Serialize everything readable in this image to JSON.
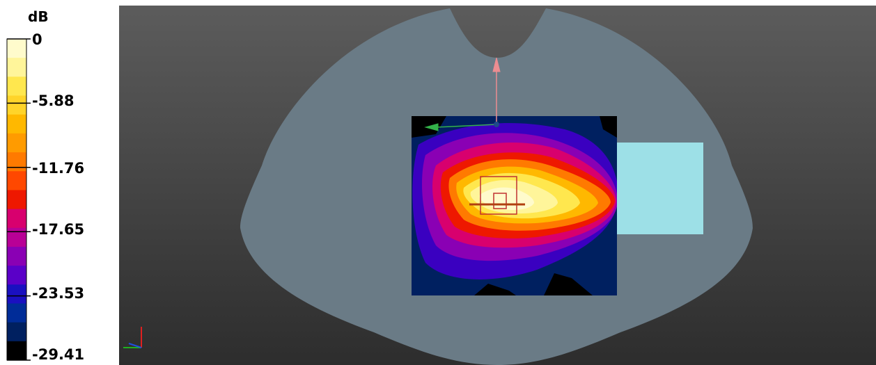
{
  "colorbar": {
    "unit": "dB",
    "ticks": [
      "0",
      "-5.88",
      "-11.76",
      "-17.65",
      "-23.53",
      "-29.41"
    ],
    "range": [
      -29.41,
      0
    ],
    "colors": [
      "#fffbcc",
      "#fff59a",
      "#ffe74e",
      "#ffd42a",
      "#ffb800",
      "#ff9b00",
      "#ff7a00",
      "#ff4800",
      "#ee1800",
      "#d8006e",
      "#b80096",
      "#8a00b4",
      "#5a00c8",
      "#1a10c0",
      "#002c98",
      "#002060",
      "#000000"
    ]
  },
  "viewport": {
    "background_colors": [
      "#5c5c5c",
      "#2d2d2d"
    ],
    "phantom_color": "#6a7b86",
    "block_color": "#9de0e7",
    "arrow_colors": {
      "vertical": "#ec8d91",
      "horizontal": "#34b24a",
      "origin": "#1f4a8a"
    }
  },
  "axis_icon": {
    "colors": [
      "#e02020",
      "#20b020",
      "#2050e0"
    ]
  }
}
